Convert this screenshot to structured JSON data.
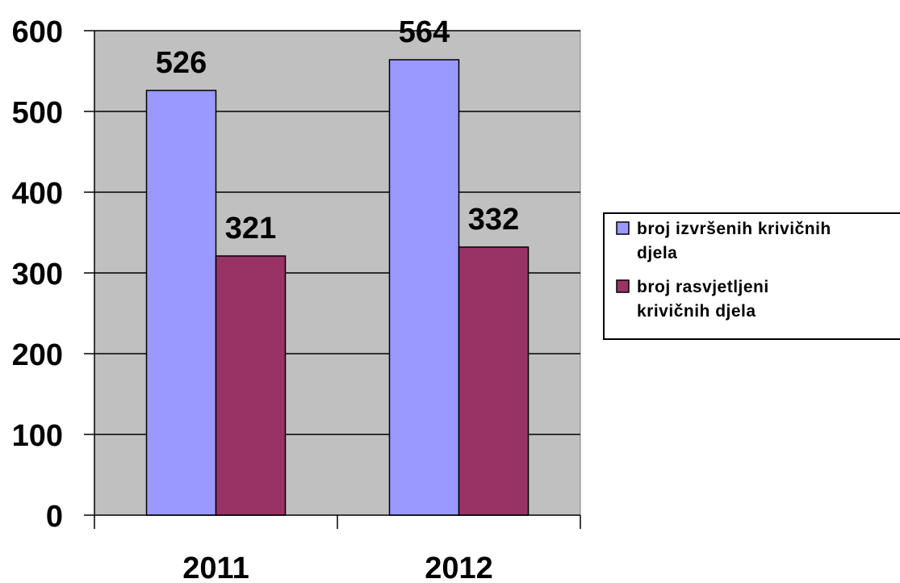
{
  "chart_data": {
    "type": "bar",
    "categories": [
      "2011",
      "2012"
    ],
    "series": [
      {
        "name": "broj izvršenih krivičnih djela",
        "legend_lines": [
          "broj izvršenih krivičnih",
          "djela"
        ],
        "values": [
          526,
          564
        ],
        "labels": [
          "526",
          "564"
        ],
        "color": "#9999ff"
      },
      {
        "name": "broj rasvjetljeni krivičnih djela",
        "legend_lines": [
          "broj rasvjetljeni",
          "krivičnih djela"
        ],
        "values": [
          321,
          332
        ],
        "labels": [
          "321",
          "332"
        ],
        "color": "#993366"
      }
    ],
    "ylim": [
      0,
      600
    ],
    "yticks": [
      0,
      100,
      200,
      300,
      400,
      500,
      600
    ],
    "ytick_labels": [
      "0",
      "100",
      "200",
      "300",
      "400",
      "500",
      "600"
    ],
    "grid": true,
    "plot_background": "#c0c0c0",
    "legend_position": "right"
  }
}
